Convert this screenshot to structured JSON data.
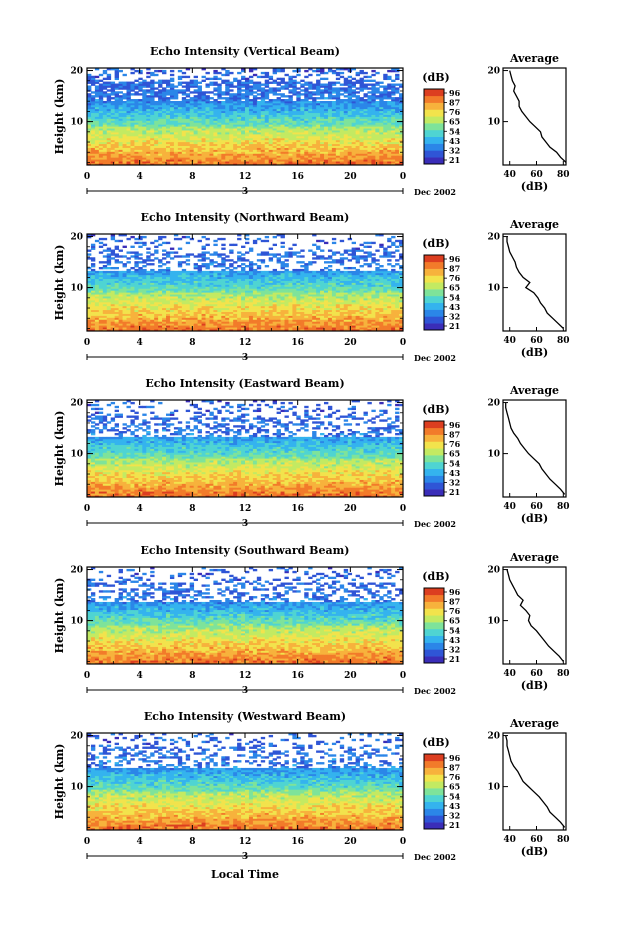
{
  "chart_data": [
    {
      "type": "heatmap",
      "title": "Echo Intensity (Vertical Beam)",
      "xlabel": "",
      "ylabel": "Height (km)",
      "x_ticks": [
        "0",
        "4",
        "8",
        "12",
        "16",
        "20",
        "0"
      ],
      "y_ticks": [
        "10",
        "20"
      ],
      "ylim": [
        1.5,
        20.5
      ],
      "day_label": "3",
      "month_label": "Dec 2002",
      "colorbar": {
        "label": "(dB)",
        "ticks": [
          "96",
          "87",
          "76",
          "65",
          "54",
          "43",
          "32",
          "21"
        ]
      },
      "profile": {
        "title": "Average",
        "xlabel": "(dB)",
        "x_ticks": [
          "40",
          "60",
          "80"
        ],
        "y_ticks": [
          "10",
          "20"
        ],
        "heights": [
          2,
          3,
          4,
          5,
          6,
          7,
          8,
          9,
          10,
          11,
          12,
          13,
          14,
          15,
          16,
          17,
          18,
          19,
          20
        ],
        "values": [
          82,
          78,
          75,
          70,
          67,
          64,
          63,
          59,
          55,
          52,
          49,
          47,
          47,
          45,
          43,
          44,
          42,
          41,
          40
        ]
      }
    },
    {
      "type": "heatmap",
      "title": "Echo Intensity (Northward Beam)",
      "xlabel": "",
      "ylabel": "Height (km)",
      "x_ticks": [
        "0",
        "4",
        "8",
        "12",
        "16",
        "20",
        "0"
      ],
      "y_ticks": [
        "10",
        "20"
      ],
      "ylim": [
        1.5,
        20.5
      ],
      "day_label": "3",
      "month_label": "Dec 2002",
      "colorbar": {
        "label": "(dB)",
        "ticks": [
          "96",
          "87",
          "76",
          "65",
          "54",
          "43",
          "32",
          "21"
        ]
      },
      "profile": {
        "title": "Average",
        "xlabel": "(dB)",
        "x_ticks": [
          "40",
          "60",
          "80"
        ],
        "y_ticks": [
          "10",
          "20"
        ],
        "heights": [
          2,
          3,
          4,
          5,
          6,
          7,
          8,
          9,
          10,
          11,
          12,
          13,
          14,
          15,
          16,
          17,
          18,
          19,
          20
        ],
        "values": [
          80,
          76,
          72,
          68,
          66,
          63,
          61,
          58,
          52,
          55,
          50,
          47,
          45,
          44,
          42,
          40,
          39,
          38,
          38
        ]
      }
    },
    {
      "type": "heatmap",
      "title": "Echo Intensity (Eastward Beam)",
      "xlabel": "",
      "ylabel": "Height (km)",
      "x_ticks": [
        "0",
        "4",
        "8",
        "12",
        "16",
        "20",
        "0"
      ],
      "y_ticks": [
        "10",
        "20"
      ],
      "ylim": [
        1.5,
        20.5
      ],
      "day_label": "3",
      "month_label": "Dec 2002",
      "colorbar": {
        "label": "(dB)",
        "ticks": [
          "96",
          "87",
          "76",
          "65",
          "54",
          "43",
          "32",
          "21"
        ]
      },
      "profile": {
        "title": "Average",
        "xlabel": "(dB)",
        "x_ticks": [
          "40",
          "60",
          "80"
        ],
        "y_ticks": [
          "10",
          "20"
        ],
        "heights": [
          2,
          3,
          4,
          5,
          6,
          7,
          8,
          9,
          10,
          11,
          12,
          13,
          14,
          15,
          16,
          17,
          18,
          19,
          20
        ],
        "values": [
          81,
          78,
          74,
          70,
          67,
          64,
          62,
          58,
          54,
          51,
          48,
          46,
          43,
          41,
          40,
          39,
          38,
          37,
          37
        ]
      }
    },
    {
      "type": "heatmap",
      "title": "Echo Intensity (Southward Beam)",
      "xlabel": "",
      "ylabel": "Height (km)",
      "x_ticks": [
        "0",
        "4",
        "8",
        "12",
        "16",
        "20",
        "0"
      ],
      "y_ticks": [
        "10",
        "20"
      ],
      "ylim": [
        1.5,
        20.5
      ],
      "day_label": "3",
      "month_label": "Dec 2002",
      "colorbar": {
        "label": "(dB)",
        "ticks": [
          "96",
          "87",
          "76",
          "65",
          "54",
          "43",
          "32",
          "21"
        ]
      },
      "profile": {
        "title": "Average",
        "xlabel": "(dB)",
        "x_ticks": [
          "40",
          "60",
          "80"
        ],
        "y_ticks": [
          "10",
          "20"
        ],
        "heights": [
          2,
          3,
          4,
          5,
          6,
          7,
          8,
          9,
          10,
          11,
          12,
          13,
          14,
          15,
          16,
          17,
          18,
          19,
          20
        ],
        "values": [
          80,
          77,
          73,
          69,
          66,
          63,
          60,
          56,
          54,
          55,
          52,
          48,
          50,
          46,
          44,
          42,
          40,
          39,
          38
        ]
      }
    },
    {
      "type": "heatmap",
      "title": "Echo Intensity (Westward Beam)",
      "xlabel": "Local Time",
      "ylabel": "Height (km)",
      "x_ticks": [
        "0",
        "4",
        "8",
        "12",
        "16",
        "20",
        "0"
      ],
      "y_ticks": [
        "10",
        "20"
      ],
      "ylim": [
        1.5,
        20.5
      ],
      "day_label": "3",
      "month_label": "Dec 2002",
      "colorbar": {
        "label": "(dB)",
        "ticks": [
          "96",
          "87",
          "76",
          "65",
          "54",
          "43",
          "32",
          "21"
        ]
      },
      "profile": {
        "title": "Average",
        "xlabel": "(dB)",
        "x_ticks": [
          "40",
          "60",
          "80"
        ],
        "y_ticks": [
          "10",
          "20"
        ],
        "heights": [
          2,
          3,
          4,
          5,
          6,
          7,
          8,
          9,
          10,
          11,
          12,
          13,
          14,
          15,
          16,
          17,
          18,
          19,
          20
        ],
        "values": [
          81,
          78,
          74,
          70,
          68,
          65,
          62,
          58,
          54,
          50,
          48,
          46,
          43,
          41,
          40,
          39,
          38,
          38,
          37
        ]
      }
    }
  ]
}
